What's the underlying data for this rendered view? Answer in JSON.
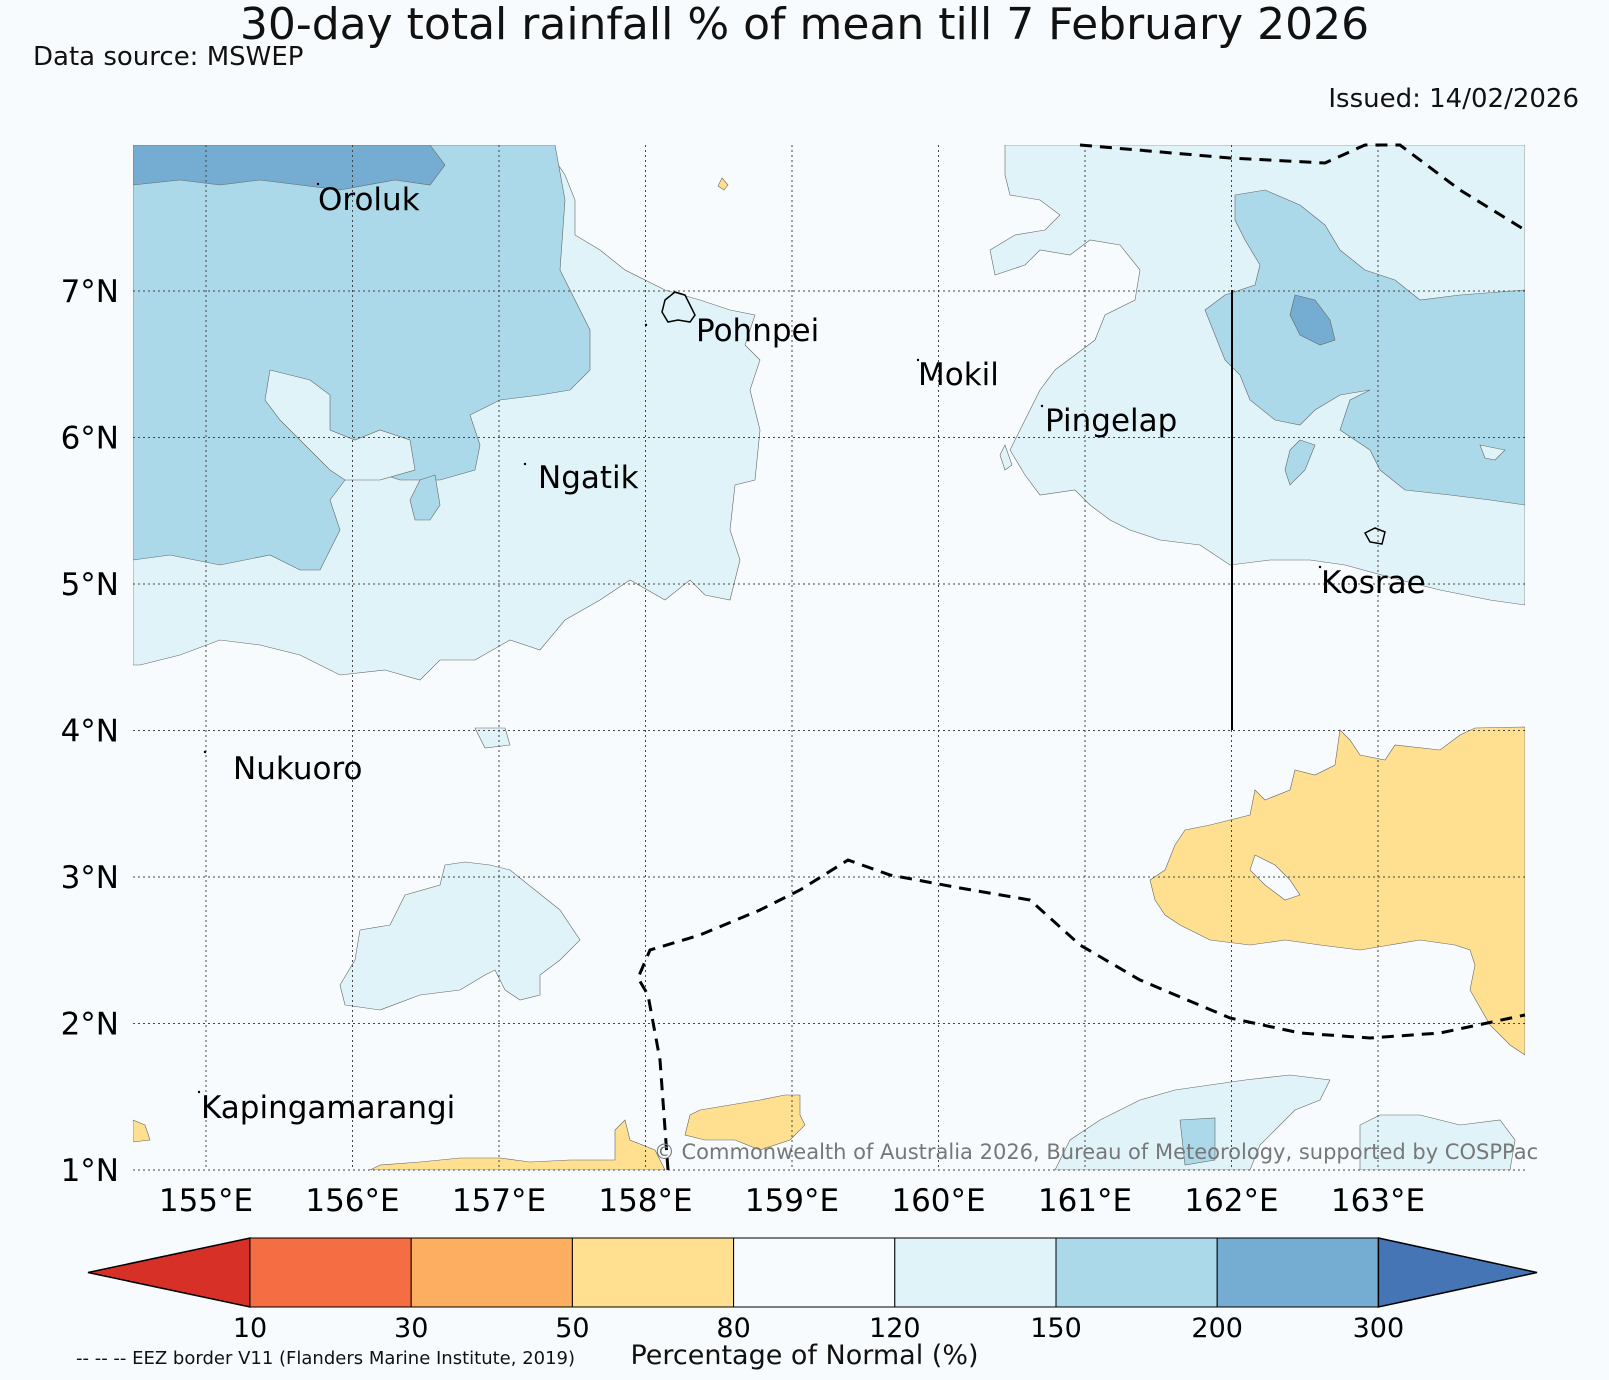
{
  "header": {
    "title": "30-day total rainfall % of mean till 7 February 2026",
    "source": "Data source: MSWEP",
    "issued": "Issued: 14/02/2026"
  },
  "map": {
    "lon_labels": [
      "155°E",
      "156°E",
      "157°E",
      "158°E",
      "159°E",
      "160°E",
      "161°E",
      "162°E",
      "163°E"
    ],
    "lat_labels": [
      "1°N",
      "2°N",
      "3°N",
      "4°N",
      "5°N",
      "6°N",
      "7°N"
    ],
    "places": [
      "Oroluk",
      "Pohnpei",
      "Mokil",
      "Pingelap",
      "Ngatik",
      "Kosrae",
      "Nukuoro",
      "Kapingamarangi"
    ],
    "copyright": "© Commonwealth of Australia 2026, Bureau of Meteorology, supported by COSPPac"
  },
  "colorbar": {
    "ticks": [
      "10",
      "30",
      "50",
      "80",
      "120",
      "150",
      "200",
      "300"
    ],
    "colors": [
      "#d73027",
      "#f46d43",
      "#fdae61",
      "#fee090",
      "#f7fbfd",
      "#e0f3f8",
      "#abd9e9",
      "#74add1",
      "#4575b4"
    ],
    "title": "Percentage of Normal (%)",
    "footnote": "-- -- -- EEZ border V11 (Flanders Marine Institute, 2019)"
  }
}
